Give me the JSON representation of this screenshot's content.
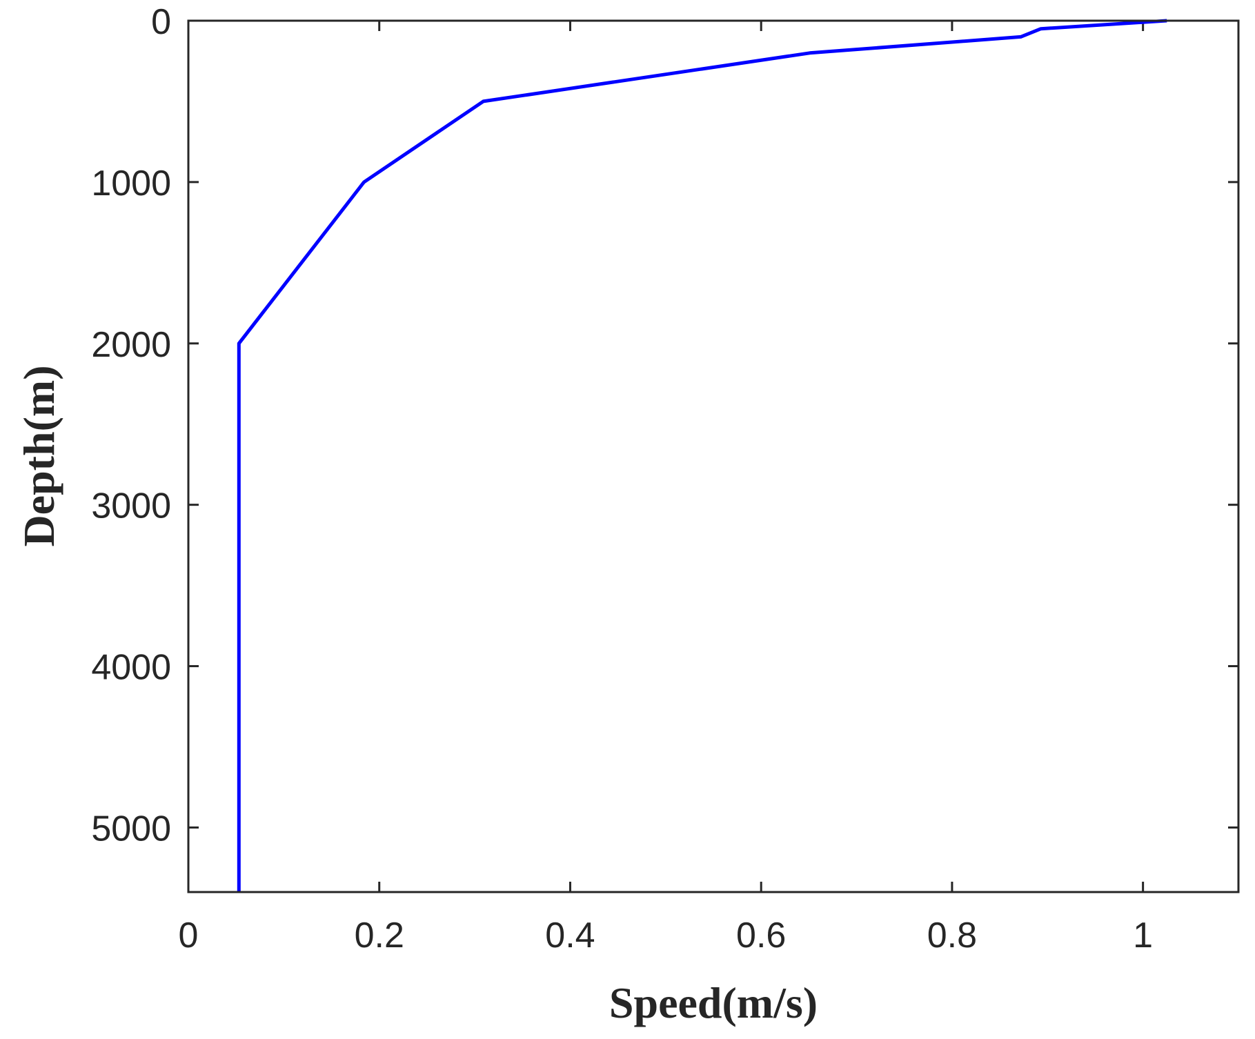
{
  "chart_data": {
    "type": "line",
    "title": "",
    "xlabel": "Speed(m/s)",
    "ylabel": "Depth(m)",
    "xlim": [
      0,
      1.1
    ],
    "ylim": [
      0,
      5400
    ],
    "y_reversed": true,
    "grid": false,
    "legend": "none",
    "x_ticks": [
      {
        "value": 0,
        "label": "0"
      },
      {
        "value": 0.2,
        "label": "0.2"
      },
      {
        "value": 0.4,
        "label": "0.4"
      },
      {
        "value": 0.6,
        "label": "0.6"
      },
      {
        "value": 0.8,
        "label": "0.8"
      },
      {
        "value": 1,
        "label": "1"
      }
    ],
    "y_ticks": [
      {
        "value": 0,
        "label": "0"
      },
      {
        "value": 1000,
        "label": "1000"
      },
      {
        "value": 2000,
        "label": "2000"
      },
      {
        "value": 3000,
        "label": "3000"
      },
      {
        "value": 4000,
        "label": "4000"
      },
      {
        "value": 5000,
        "label": "5000"
      }
    ],
    "series": [
      {
        "color": "#0000ff",
        "points": [
          {
            "speed": 1.025,
            "depth": 0
          },
          {
            "speed": 0.893,
            "depth": 50
          },
          {
            "speed": 0.872,
            "depth": 100
          },
          {
            "speed": 0.651,
            "depth": 200
          },
          {
            "speed": 0.309,
            "depth": 500
          },
          {
            "speed": 0.184,
            "depth": 1000
          },
          {
            "speed": 0.053,
            "depth": 2000
          },
          {
            "speed": 0.053,
            "depth": 5400
          }
        ]
      }
    ]
  }
}
